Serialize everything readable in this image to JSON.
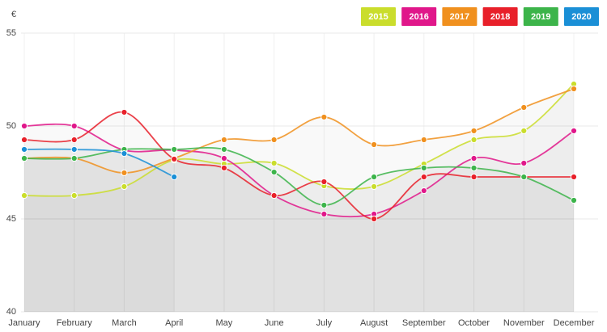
{
  "chart_data": {
    "type": "line",
    "y_unit_label": "€",
    "categories": [
      "January",
      "February",
      "March",
      "April",
      "May",
      "June",
      "July",
      "August",
      "September",
      "October",
      "November",
      "December"
    ],
    "series": [
      {
        "name": "2015",
        "color": "#cadd2c",
        "values": [
          46.26,
          46.26,
          46.74,
          48.17,
          47.96,
          48.0,
          46.78,
          46.74,
          47.96,
          49.26,
          49.74,
          52.26
        ]
      },
      {
        "name": "2016",
        "color": "#e0178a",
        "values": [
          50.0,
          50.0,
          48.7,
          48.7,
          48.26,
          46.26,
          45.26,
          45.26,
          46.52,
          48.26,
          48.0,
          49.74
        ]
      },
      {
        "name": "2017",
        "color": "#f0901e",
        "values": [
          48.26,
          48.26,
          47.48,
          48.26,
          49.26,
          49.26,
          50.48,
          49.0,
          49.26,
          49.74,
          51.0,
          52.0
        ]
      },
      {
        "name": "2018",
        "color": "#e8202a",
        "values": [
          49.26,
          49.26,
          50.74,
          48.22,
          47.74,
          46.26,
          47.0,
          45.0,
          47.26,
          47.26,
          47.26,
          47.26
        ]
      },
      {
        "name": "2019",
        "color": "#3cb44a",
        "values": [
          48.26,
          48.26,
          48.74,
          48.74,
          48.74,
          47.52,
          45.74,
          47.26,
          47.74,
          47.74,
          47.26,
          46.0
        ]
      },
      {
        "name": "2020",
        "color": "#1a8fd6",
        "values": [
          48.74,
          48.74,
          48.52,
          47.26,
          null,
          null,
          null,
          null,
          null,
          null,
          null,
          null
        ]
      }
    ],
    "ylim": [
      40,
      55
    ],
    "yticks": [
      40,
      45,
      50,
      55
    ],
    "grid": true,
    "legend": "top-right"
  }
}
